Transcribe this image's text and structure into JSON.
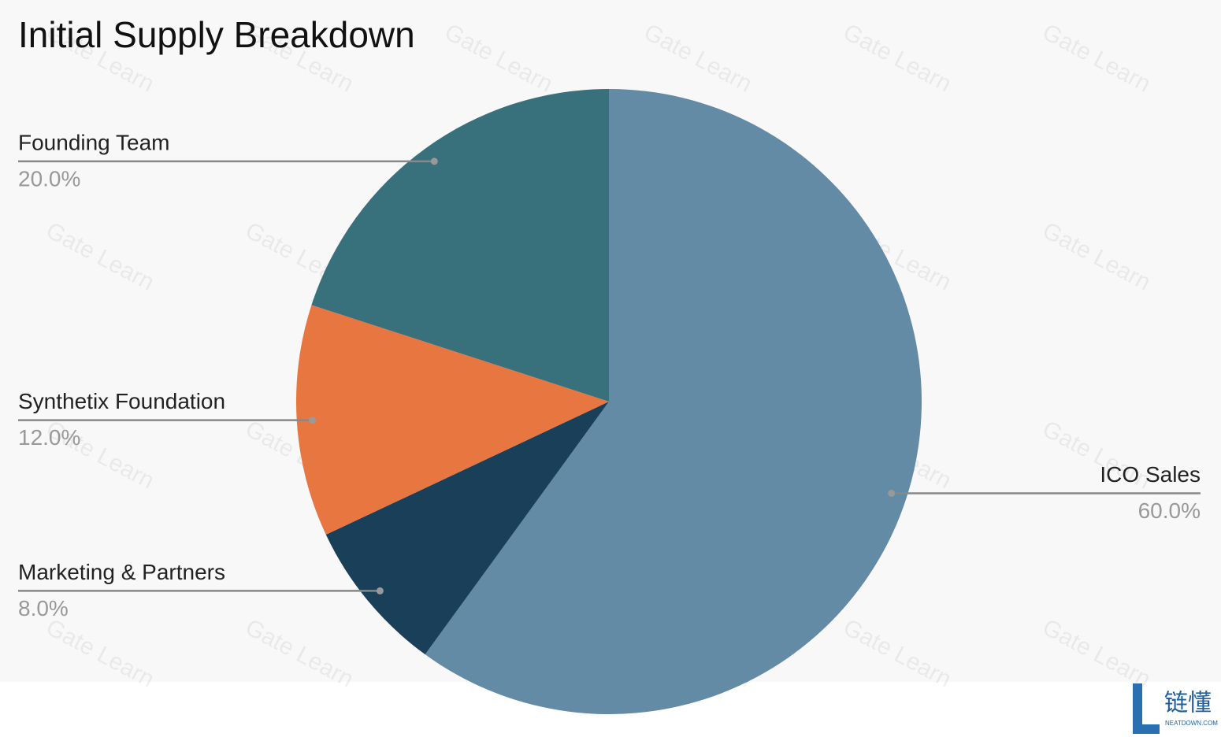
{
  "chart_data": {
    "type": "pie",
    "title": "Initial Supply Breakdown",
    "categories": [
      "ICO Sales",
      "Marketing & Partners",
      "Synthetix Foundation",
      "Founding Team"
    ],
    "values": [
      60,
      8,
      12,
      20
    ],
    "value_labels": [
      "60.0%",
      "8.0%",
      "12.0%",
      "20.0%"
    ],
    "colors": [
      "#638ba6",
      "#1a3f58",
      "#e87641",
      "#38707c"
    ],
    "watermark": "Gate Learn",
    "logo": {
      "text": "链懂",
      "subtext": "NEATDOWN.COM"
    }
  }
}
